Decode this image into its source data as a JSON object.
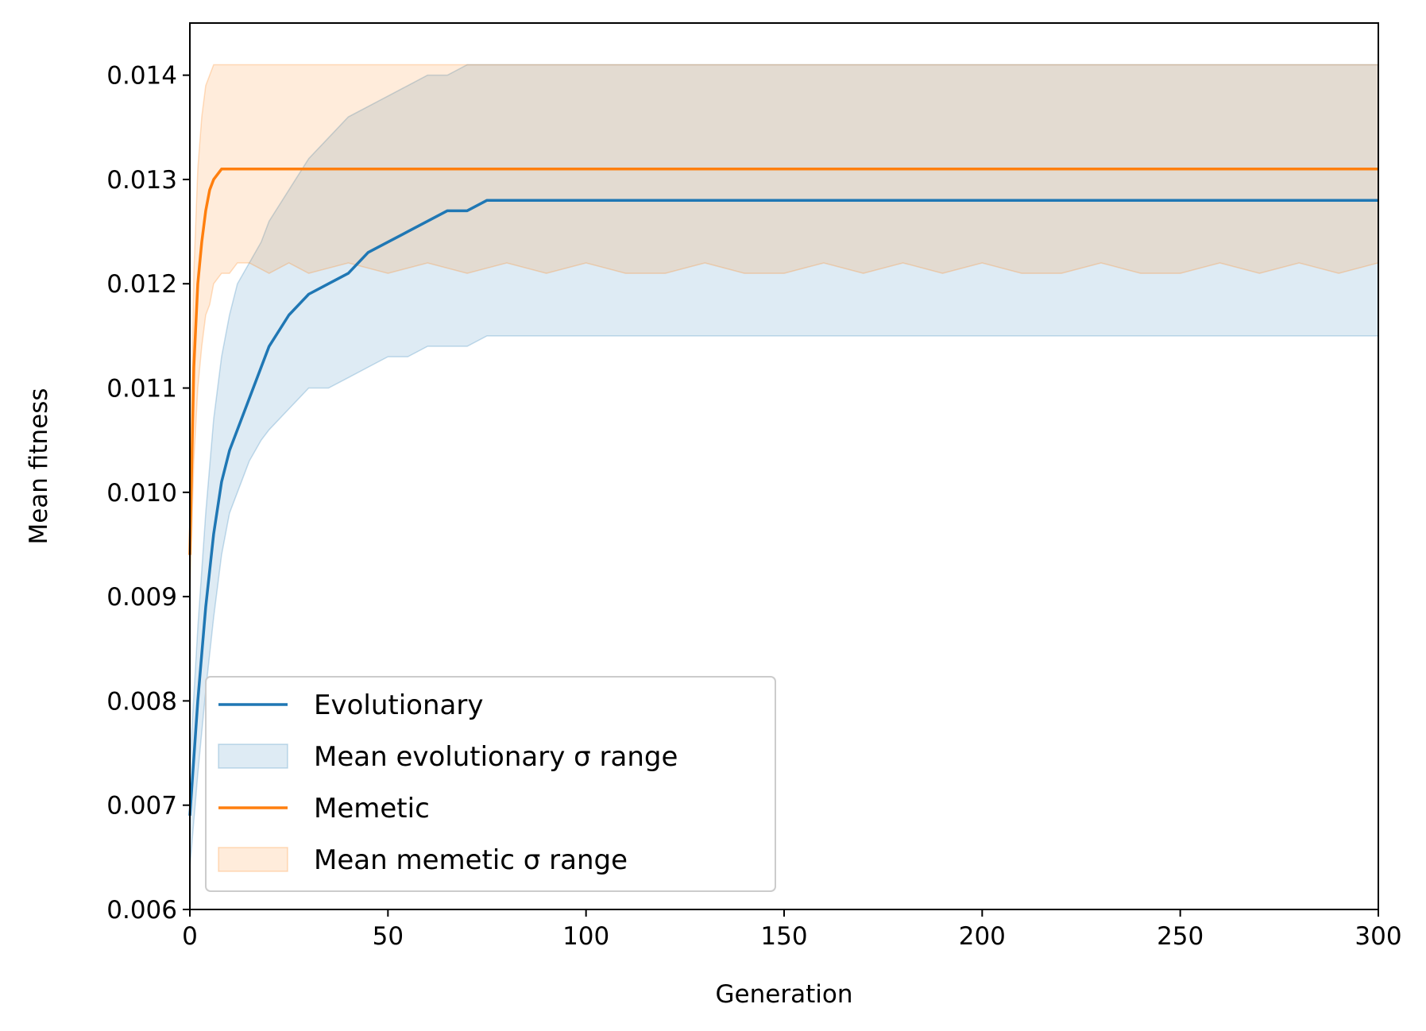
{
  "chart_data": {
    "type": "line",
    "title": "",
    "xlabel": "Generation",
    "ylabel": "Mean fitness",
    "xlim": [
      0,
      300
    ],
    "ylim": [
      0.006,
      0.0145
    ],
    "xticks": [
      0,
      50,
      100,
      150,
      200,
      250,
      300
    ],
    "xtick_labels": [
      "0",
      "50",
      "100",
      "150",
      "200",
      "250",
      "300"
    ],
    "yticks": [
      0.006,
      0.007,
      0.008,
      0.009,
      0.01,
      0.011,
      0.012,
      0.013,
      0.014
    ],
    "ytick_labels": [
      "0.006",
      "0.007",
      "0.008",
      "0.009",
      "0.010",
      "0.011",
      "0.012",
      "0.013",
      "0.014"
    ],
    "grid": false,
    "legend_position": "lower-left",
    "series": [
      {
        "name": "Evolutionary",
        "kind": "line",
        "color": "#1f77b4",
        "x": [
          0,
          2,
          4,
          6,
          8,
          10,
          12,
          15,
          18,
          20,
          25,
          30,
          35,
          40,
          45,
          50,
          55,
          60,
          65,
          70,
          75,
          80,
          90,
          100,
          110,
          120,
          130,
          140,
          150,
          160,
          170,
          180,
          190,
          200,
          210,
          220,
          230,
          240,
          250,
          260,
          270,
          280,
          290,
          300
        ],
        "y": [
          0.0069,
          0.008,
          0.0089,
          0.0096,
          0.0101,
          0.0104,
          0.0106,
          0.0109,
          0.0112,
          0.0114,
          0.0117,
          0.0119,
          0.012,
          0.0121,
          0.0123,
          0.0124,
          0.0125,
          0.0126,
          0.0127,
          0.0127,
          0.0128,
          0.0128,
          0.0128,
          0.0128,
          0.0128,
          0.0128,
          0.0128,
          0.0128,
          0.0128,
          0.0128,
          0.0128,
          0.0128,
          0.0128,
          0.0128,
          0.0128,
          0.0128,
          0.0128,
          0.0128,
          0.0128,
          0.0128,
          0.0128,
          0.0128,
          0.0128,
          0.0128
        ]
      },
      {
        "name": "Mean evolutionary σ range",
        "kind": "band",
        "color": "#1f77b4",
        "x": [
          0,
          2,
          4,
          6,
          8,
          10,
          12,
          15,
          18,
          20,
          25,
          30,
          35,
          40,
          45,
          50,
          55,
          60,
          65,
          70,
          75,
          80,
          90,
          100,
          110,
          120,
          130,
          140,
          150,
          160,
          170,
          180,
          190,
          200,
          210,
          220,
          230,
          240,
          250,
          260,
          270,
          280,
          290,
          300
        ],
        "lower": [
          0.0064,
          0.0073,
          0.0081,
          0.0088,
          0.0094,
          0.0098,
          0.01,
          0.0103,
          0.0105,
          0.0106,
          0.0108,
          0.011,
          0.011,
          0.0111,
          0.0112,
          0.0113,
          0.0113,
          0.0114,
          0.0114,
          0.0114,
          0.0115,
          0.0115,
          0.0115,
          0.0115,
          0.0115,
          0.0115,
          0.0115,
          0.0115,
          0.0115,
          0.0115,
          0.0115,
          0.0115,
          0.0115,
          0.0115,
          0.0115,
          0.0115,
          0.0115,
          0.0115,
          0.0115,
          0.0115,
          0.0115,
          0.0115,
          0.0115,
          0.0115
        ],
        "upper": [
          0.0074,
          0.0087,
          0.0098,
          0.0107,
          0.0113,
          0.0117,
          0.012,
          0.0122,
          0.0124,
          0.0126,
          0.0129,
          0.0132,
          0.0134,
          0.0136,
          0.0137,
          0.0138,
          0.0139,
          0.014,
          0.014,
          0.0141,
          0.0141,
          0.0141,
          0.0141,
          0.0141,
          0.0141,
          0.0141,
          0.0141,
          0.0141,
          0.0141,
          0.0141,
          0.0141,
          0.0141,
          0.0141,
          0.0141,
          0.0141,
          0.0141,
          0.0141,
          0.0141,
          0.0141,
          0.0141,
          0.0141,
          0.0141,
          0.0141,
          0.0141
        ]
      },
      {
        "name": "Memetic",
        "kind": "line",
        "color": "#ff7f0e",
        "x": [
          0,
          1,
          2,
          3,
          4,
          5,
          6,
          8,
          10,
          12,
          15,
          20,
          25,
          30,
          40,
          50,
          60,
          70,
          80,
          90,
          100,
          110,
          120,
          130,
          140,
          150,
          160,
          170,
          180,
          190,
          200,
          210,
          220,
          230,
          240,
          250,
          260,
          270,
          280,
          290,
          300
        ],
        "y": [
          0.0094,
          0.0112,
          0.012,
          0.0124,
          0.0127,
          0.0129,
          0.013,
          0.0131,
          0.0131,
          0.0131,
          0.0131,
          0.0131,
          0.0131,
          0.0131,
          0.0131,
          0.0131,
          0.0131,
          0.0131,
          0.0131,
          0.0131,
          0.0131,
          0.0131,
          0.0131,
          0.0131,
          0.0131,
          0.0131,
          0.0131,
          0.0131,
          0.0131,
          0.0131,
          0.0131,
          0.0131,
          0.0131,
          0.0131,
          0.0131,
          0.0131,
          0.0131,
          0.0131,
          0.0131,
          0.0131,
          0.0131
        ]
      },
      {
        "name": "Mean memetic σ range",
        "kind": "band",
        "color": "#ff7f0e",
        "x": [
          0,
          1,
          2,
          3,
          4,
          5,
          6,
          8,
          10,
          12,
          15,
          20,
          25,
          30,
          40,
          50,
          60,
          70,
          80,
          90,
          100,
          110,
          120,
          130,
          140,
          150,
          160,
          170,
          180,
          190,
          200,
          210,
          220,
          230,
          240,
          250,
          260,
          270,
          280,
          290,
          300
        ],
        "lower": [
          0.009,
          0.0103,
          0.011,
          0.0114,
          0.0117,
          0.0118,
          0.012,
          0.0121,
          0.0121,
          0.0122,
          0.0122,
          0.0121,
          0.0122,
          0.0121,
          0.0122,
          0.0121,
          0.0122,
          0.0121,
          0.0122,
          0.0121,
          0.0122,
          0.0121,
          0.0121,
          0.0122,
          0.0121,
          0.0121,
          0.0122,
          0.0121,
          0.0122,
          0.0121,
          0.0122,
          0.0121,
          0.0121,
          0.0122,
          0.0121,
          0.0121,
          0.0122,
          0.0121,
          0.0122,
          0.0121,
          0.0122
        ],
        "upper": [
          0.0098,
          0.0121,
          0.0131,
          0.0136,
          0.0139,
          0.014,
          0.0141,
          0.0141,
          0.0141,
          0.0141,
          0.0141,
          0.0141,
          0.0141,
          0.0141,
          0.0141,
          0.0141,
          0.0141,
          0.0141,
          0.0141,
          0.0141,
          0.0141,
          0.0141,
          0.0141,
          0.0141,
          0.0141,
          0.0141,
          0.0141,
          0.0141,
          0.0141,
          0.0141,
          0.0141,
          0.0141,
          0.0141,
          0.0141,
          0.0141,
          0.0141,
          0.0141,
          0.0141,
          0.0141,
          0.0141,
          0.0141
        ]
      }
    ],
    "legend": [
      {
        "label": "Evolutionary",
        "kind": "line",
        "color": "#1f77b4"
      },
      {
        "label": "Mean evolutionary σ range",
        "kind": "band",
        "color": "#1f77b4"
      },
      {
        "label": "Memetic",
        "kind": "line",
        "color": "#ff7f0e"
      },
      {
        "label": "Mean memetic σ range",
        "kind": "band",
        "color": "#ff7f0e"
      }
    ]
  }
}
